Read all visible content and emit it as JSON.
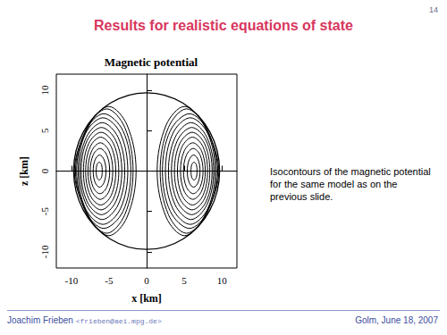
{
  "slide": {
    "page_number": "14",
    "title": "Results for realistic equations of state",
    "caption": "Isocontours of the magnetic potential for the same model as on the previous slide.",
    "footer_author": "Joachim Frieben",
    "footer_email": "<frieben@aei.mpg.de>",
    "footer_right": "Golm, June 18, 2007"
  },
  "chart_data": {
    "type": "contour",
    "title": "Magnetic potential",
    "x_label": "x [km]",
    "y_label": "z [km]",
    "xlim": [
      -12,
      12
    ],
    "ylim": [
      -12,
      12
    ],
    "xticks": [
      -10,
      -5,
      0,
      5,
      10
    ],
    "yticks": [
      -10,
      -5,
      0,
      5,
      10
    ],
    "grid": false,
    "color": "#000000",
    "surface": [
      [
        9.7,
        0
      ],
      [
        8.4,
        4.85
      ],
      [
        4.85,
        8.4
      ],
      [
        0,
        9.7
      ],
      [
        -4.85,
        8.4
      ],
      [
        -8.4,
        4.85
      ],
      [
        -9.7,
        0
      ],
      [
        -8.4,
        -4.85
      ],
      [
        -4.85,
        -8.4
      ],
      [
        0,
        -9.7
      ],
      [
        4.85,
        -8.4
      ],
      [
        8.4,
        -4.85
      ]
    ],
    "contours": [
      [
        [
          6.7,
          0
        ],
        [
          6.6,
          0.8
        ],
        [
          6.3,
          1.1
        ],
        [
          6.0,
          0.8
        ],
        [
          5.9,
          0
        ],
        [
          6.0,
          -0.8
        ],
        [
          6.3,
          -1.1
        ],
        [
          6.6,
          -0.8
        ]
      ],
      [
        [
          7.1,
          0
        ],
        [
          6.85,
          1.4
        ],
        [
          6.25,
          2.0
        ],
        [
          5.65,
          1.4
        ],
        [
          5.4,
          0
        ],
        [
          5.65,
          -1.4
        ],
        [
          6.25,
          -2.0
        ],
        [
          6.85,
          -1.4
        ]
      ],
      [
        [
          7.5,
          0
        ],
        [
          7.1,
          2.0
        ],
        [
          6.2,
          2.8
        ],
        [
          5.3,
          2.0
        ],
        [
          4.9,
          0
        ],
        [
          5.3,
          -2.0
        ],
        [
          6.2,
          -2.8
        ],
        [
          7.1,
          -2.0
        ]
      ],
      [
        [
          7.8,
          0
        ],
        [
          7.3,
          2.5
        ],
        [
          6.15,
          3.5
        ],
        [
          5.0,
          2.5
        ],
        [
          4.5,
          0
        ],
        [
          5.0,
          -2.5
        ],
        [
          6.15,
          -3.5
        ],
        [
          7.3,
          -2.5
        ]
      ],
      [
        [
          8.1,
          0
        ],
        [
          7.5,
          3.0
        ],
        [
          6.1,
          4.2
        ],
        [
          4.7,
          3.0
        ],
        [
          4.1,
          0
        ],
        [
          4.7,
          -3.0
        ],
        [
          6.1,
          -4.2
        ],
        [
          7.5,
          -3.0
        ]
      ],
      [
        [
          8.4,
          0
        ],
        [
          7.7,
          3.4
        ],
        [
          6.05,
          4.8
        ],
        [
          4.4,
          3.4
        ],
        [
          3.7,
          0
        ],
        [
          4.4,
          -3.4
        ],
        [
          6.05,
          -4.8
        ],
        [
          7.7,
          -3.4
        ]
      ],
      [
        [
          8.7,
          0
        ],
        [
          7.9,
          3.8
        ],
        [
          6.0,
          5.4
        ],
        [
          4.1,
          3.8
        ],
        [
          3.3,
          0
        ],
        [
          4.1,
          -3.8
        ],
        [
          6.0,
          -5.4
        ],
        [
          7.9,
          -3.8
        ]
      ],
      [
        [
          8.9,
          0
        ],
        [
          8.0,
          4.2
        ],
        [
          5.9,
          6.0
        ],
        [
          3.8,
          4.2
        ],
        [
          2.9,
          0
        ],
        [
          3.8,
          -4.2
        ],
        [
          5.9,
          -6.0
        ],
        [
          8.0,
          -4.2
        ]
      ],
      [
        [
          9.1,
          0
        ],
        [
          8.1,
          4.7
        ],
        [
          5.8,
          6.6
        ],
        [
          3.5,
          4.7
        ],
        [
          2.5,
          0
        ],
        [
          3.5,
          -4.7
        ],
        [
          5.8,
          -6.6
        ],
        [
          8.1,
          -4.7
        ]
      ],
      [
        [
          9.3,
          0
        ],
        [
          8.1,
          5.0
        ],
        [
          5.7,
          7.1
        ],
        [
          3.15,
          5.0
        ],
        [
          2.1,
          0
        ],
        [
          3.15,
          -5.0
        ],
        [
          5.7,
          -7.1
        ],
        [
          8.1,
          -5.0
        ]
      ],
      [
        [
          9.45,
          0
        ],
        [
          7.9,
          5.4
        ],
        [
          5.3,
          7.7
        ],
        [
          2.9,
          5.4
        ],
        [
          1.8,
          0
        ],
        [
          2.9,
          -5.4
        ],
        [
          5.3,
          -7.7
        ],
        [
          7.9,
          -5.4
        ]
      ],
      [
        [
          9.6,
          0
        ],
        [
          7.5,
          5.9
        ],
        [
          5.0,
          8.0
        ],
        [
          2.6,
          5.7
        ],
        [
          1.4,
          0
        ],
        [
          2.6,
          -5.7
        ],
        [
          5.0,
          -8.0
        ],
        [
          7.5,
          -5.9
        ]
      ],
      [
        [
          -6.7,
          0
        ],
        [
          -6.6,
          0.8
        ],
        [
          -6.3,
          1.1
        ],
        [
          -6.0,
          0.8
        ],
        [
          -5.9,
          0
        ],
        [
          -6.0,
          -0.8
        ],
        [
          -6.3,
          -1.1
        ],
        [
          -6.6,
          -0.8
        ]
      ],
      [
        [
          -7.1,
          0
        ],
        [
          -6.85,
          1.4
        ],
        [
          -6.25,
          2.0
        ],
        [
          -5.65,
          1.4
        ],
        [
          -5.4,
          0
        ],
        [
          -5.65,
          -1.4
        ],
        [
          -6.25,
          -2.0
        ],
        [
          -6.85,
          -1.4
        ]
      ],
      [
        [
          -7.5,
          0
        ],
        [
          -7.1,
          2.0
        ],
        [
          -6.2,
          2.8
        ],
        [
          -5.3,
          2.0
        ],
        [
          -4.9,
          0
        ],
        [
          -5.3,
          -2.0
        ],
        [
          -6.2,
          -2.8
        ],
        [
          -7.1,
          -2.0
        ]
      ],
      [
        [
          -7.8,
          0
        ],
        [
          -7.3,
          2.5
        ],
        [
          -6.15,
          3.5
        ],
        [
          -5.0,
          2.5
        ],
        [
          -4.5,
          0
        ],
        [
          -5.0,
          -2.5
        ],
        [
          -6.15,
          -3.5
        ],
        [
          -7.3,
          -2.5
        ]
      ],
      [
        [
          -8.1,
          0
        ],
        [
          -7.5,
          3.0
        ],
        [
          -6.1,
          4.2
        ],
        [
          -4.7,
          3.0
        ],
        [
          -4.1,
          0
        ],
        [
          -4.7,
          -3.0
        ],
        [
          -6.1,
          -4.2
        ],
        [
          -7.5,
          -3.0
        ]
      ],
      [
        [
          -8.4,
          0
        ],
        [
          -7.7,
          3.4
        ],
        [
          -6.05,
          4.8
        ],
        [
          -4.4,
          3.4
        ],
        [
          -3.7,
          0
        ],
        [
          -4.4,
          -3.4
        ],
        [
          -6.05,
          -4.8
        ],
        [
          -7.7,
          -3.4
        ]
      ],
      [
        [
          -8.7,
          0
        ],
        [
          -7.9,
          3.8
        ],
        [
          -6.0,
          5.4
        ],
        [
          -4.1,
          3.8
        ],
        [
          -3.3,
          0
        ],
        [
          -4.1,
          -3.8
        ],
        [
          -6.0,
          -5.4
        ],
        [
          -7.9,
          -3.8
        ]
      ],
      [
        [
          -8.9,
          0
        ],
        [
          -8.0,
          4.2
        ],
        [
          -5.9,
          6.0
        ],
        [
          -3.8,
          4.2
        ],
        [
          -2.9,
          0
        ],
        [
          -3.8,
          -4.2
        ],
        [
          -5.9,
          -6.0
        ],
        [
          -8.0,
          -4.2
        ]
      ],
      [
        [
          -9.1,
          0
        ],
        [
          -8.1,
          4.7
        ],
        [
          -5.8,
          6.6
        ],
        [
          -3.5,
          4.7
        ],
        [
          -2.5,
          0
        ],
        [
          -3.5,
          -4.7
        ],
        [
          -5.8,
          -6.6
        ],
        [
          -8.1,
          -4.7
        ]
      ],
      [
        [
          -9.3,
          0
        ],
        [
          -8.1,
          5.0
        ],
        [
          -5.7,
          7.1
        ],
        [
          -3.15,
          5.0
        ],
        [
          -2.1,
          0
        ],
        [
          -3.15,
          -5.0
        ],
        [
          -5.7,
          -7.1
        ],
        [
          -8.1,
          -5.0
        ]
      ],
      [
        [
          -9.45,
          0
        ],
        [
          -7.9,
          5.4
        ],
        [
          -5.3,
          7.7
        ],
        [
          -2.9,
          5.4
        ],
        [
          -1.8,
          0
        ],
        [
          -2.9,
          -5.4
        ],
        [
          -5.3,
          -7.7
        ],
        [
          -7.9,
          -5.4
        ]
      ],
      [
        [
          -9.6,
          0
        ],
        [
          -7.5,
          5.9
        ],
        [
          -5.0,
          8.0
        ],
        [
          -2.6,
          5.7
        ],
        [
          -1.4,
          0
        ],
        [
          -2.6,
          -5.7
        ],
        [
          -5.0,
          -8.0
        ],
        [
          -7.5,
          -5.9
        ]
      ]
    ]
  }
}
